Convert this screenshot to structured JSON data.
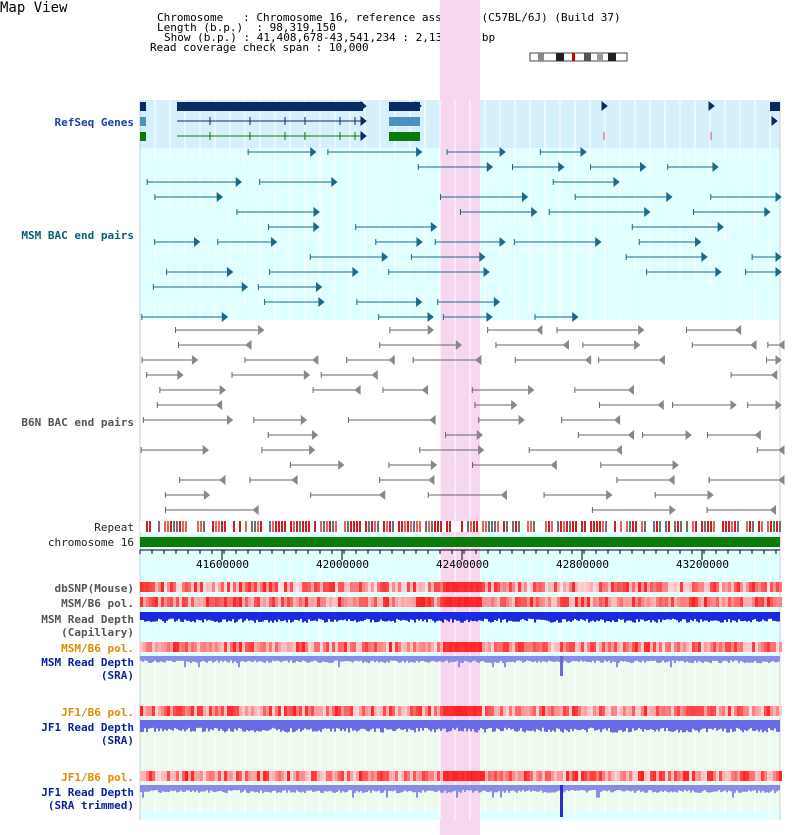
{
  "header": {
    "title": "Map View",
    "chromosome_label": "Chromosome",
    "chromosome_value": "Chromosome 16, reference assembly (C57BL/6J) (Build 37)",
    "length_label": "Length (b.p.)",
    "length_value": "98,319,150",
    "show_label": "Show (b.p.)",
    "show_value": "41,408,678-43,541,234 : 2,132,557 bp",
    "coverage_label": "Read coverage check span",
    "coverage_value": "10,000"
  },
  "tracks": {
    "refseq": "RefSeq Genes",
    "msm_bac": "MSM BAC end pairs",
    "b6n_bac": "B6N BAC end pairs",
    "repeat": "Repeat",
    "chromosome": "chromosome 16",
    "dbsnp": "dbSNP(Mouse)",
    "msm_b6_pol_1": "MSM/B6 pol.",
    "msm_depth_cap_1": "MSM Read Depth",
    "msm_depth_cap_2": "(Capillary)",
    "msm_b6_pol_2": "MSM/B6 pol.",
    "msm_depth_sra_1": "MSM Read Depth",
    "msm_depth_sra_2": "(SRA)",
    "jf1_b6_pol_1": "JF1/B6 pol.",
    "jf1_depth_sra_1": "JF1 Read Depth",
    "jf1_depth_sra_2": "(SRA)",
    "jf1_b6_pol_2": "JF1/B6 pol.",
    "jf1_depth_trim_1": "JF1 Read Depth",
    "jf1_depth_trim_2": "(SRA trimmed)"
  },
  "axis": {
    "ticks": [
      "41600000",
      "42000000",
      "42400000",
      "42800000",
      "43200000"
    ]
  },
  "colors": {
    "highlight": "#f7d6f0",
    "track_bg": "#e0ffff",
    "gene": "#0a2a66",
    "bac_msm": "#1a6a8a",
    "bac_b6n": "#666666",
    "chrom_bar": "#0a7a0a",
    "depth_cap": "#1a2ae0",
    "depth_sra": "#8a8ae8"
  }
}
